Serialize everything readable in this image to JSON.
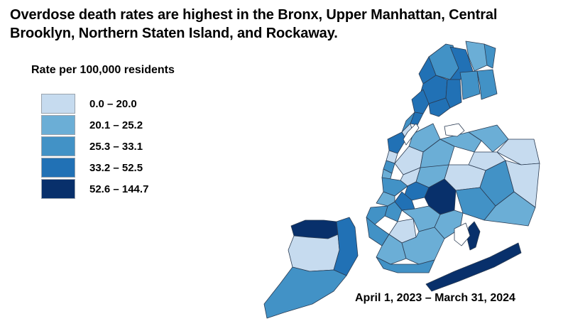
{
  "title": "Overdose death rates are highest in the Bronx, Upper Manhattan, Central Brooklyn, Northern Staten Island, and Rockaway.",
  "legend": {
    "title": "Rate per 100,000 residents",
    "items": [
      {
        "label": "0.0 – 20.0",
        "color": "#c6dbef"
      },
      {
        "label": "20.1 – 25.2",
        "color": "#6baed6"
      },
      {
        "label": "25.3 – 33.1",
        "color": "#4292c6"
      },
      {
        "label": "33.2 – 52.5",
        "color": "#2171b5"
      },
      {
        "label": "52.6 – 144.7",
        "color": "#08306b"
      }
    ]
  },
  "date_range": "April 1, 2023 – March 31, 2024",
  "water_color": "#ffffff"
}
